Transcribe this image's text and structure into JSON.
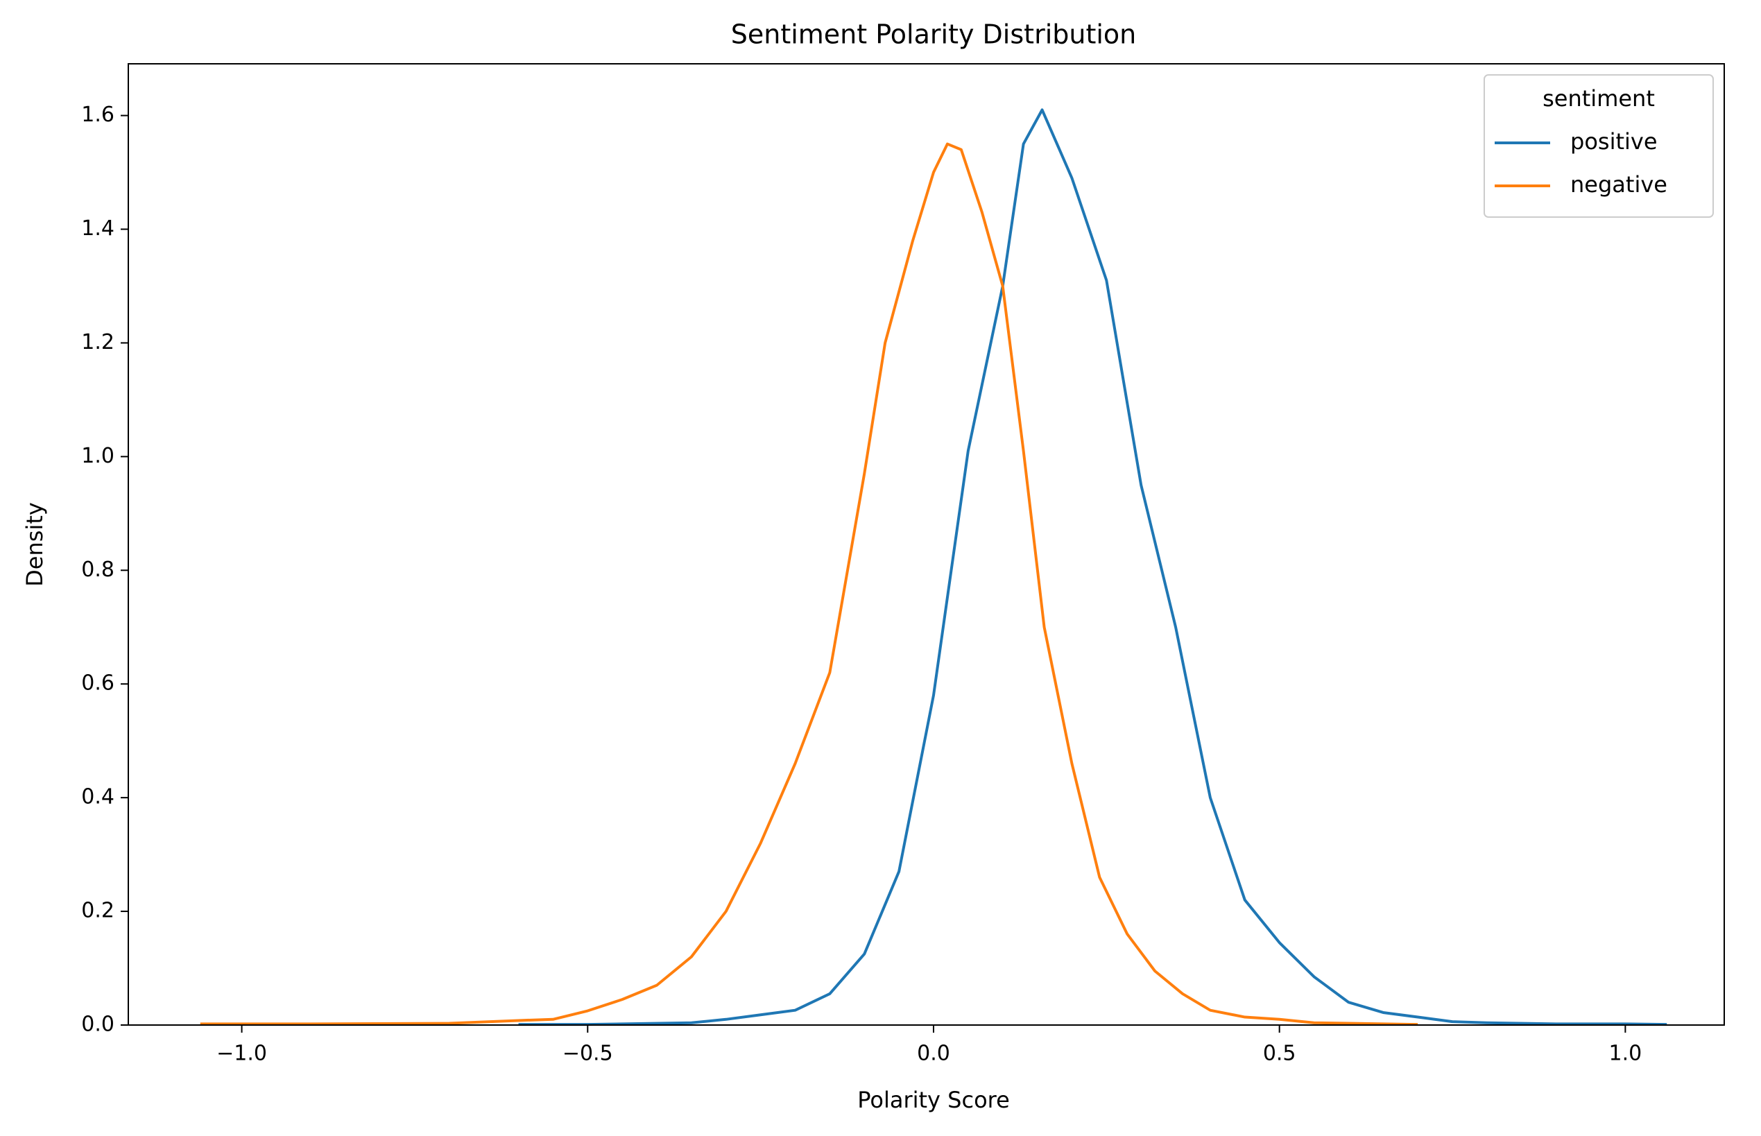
{
  "chart_data": {
    "type": "line",
    "title": "Sentiment Polarity Distribution",
    "x_label": "Polarity Score",
    "y_label": "Density",
    "xlim": [
      -1.164,
      1.143
    ],
    "ylim": [
      0,
      1.691
    ],
    "xticks": [
      {
        "value": -1.0,
        "label": "−1.0"
      },
      {
        "value": -0.5,
        "label": "−0.5"
      },
      {
        "value": 0,
        "label": "0.0"
      },
      0.5,
      {
        "value": 1.0,
        "label": "1.0"
      }
    ],
    "yticks": [
      {
        "value": 0,
        "label": "0.0"
      },
      0.2,
      0.4,
      0.6,
      0.8,
      {
        "value": 1.0,
        "label": "1.0"
      },
      1.2,
      1.4,
      1.6
    ],
    "legend_title": "sentiment",
    "legend_position": "upper-right",
    "series": [
      {
        "name": "positive",
        "color": "#1f77b4",
        "x": [
          -0.6,
          -0.5,
          -0.35,
          -0.3,
          -0.25,
          -0.2,
          -0.15,
          -0.1,
          -0.05,
          0.0,
          0.05,
          0.1,
          0.13,
          0.157,
          0.2,
          0.25,
          0.3,
          0.35,
          0.4,
          0.45,
          0.5,
          0.55,
          0.6,
          0.65,
          0.7,
          0.75,
          0.8,
          0.9,
          1.0,
          1.06
        ],
        "values": [
          0.001,
          0.001,
          0.004,
          0.01,
          0.018,
          0.026,
          0.055,
          0.125,
          0.27,
          0.58,
          1.01,
          1.3,
          1.55,
          1.61,
          1.49,
          1.31,
          0.95,
          0.7,
          0.4,
          0.22,
          0.145,
          0.085,
          0.04,
          0.022,
          0.014,
          0.006,
          0.004,
          0.002,
          0.002,
          0.001
        ]
      },
      {
        "name": "negative",
        "color": "#ff7f0e",
        "x": [
          -1.06,
          -0.9,
          -0.7,
          -0.6,
          -0.55,
          -0.5,
          -0.45,
          -0.4,
          -0.35,
          -0.3,
          -0.25,
          -0.2,
          -0.15,
          -0.1,
          -0.07,
          -0.03,
          0.0,
          0.02,
          0.04,
          0.07,
          0.1,
          0.13,
          0.16,
          0.2,
          0.24,
          0.28,
          0.32,
          0.36,
          0.4,
          0.45,
          0.5,
          0.55,
          0.6,
          0.7
        ],
        "values": [
          0.002,
          0.002,
          0.003,
          0.008,
          0.01,
          0.025,
          0.045,
          0.07,
          0.12,
          0.2,
          0.32,
          0.46,
          0.62,
          0.97,
          1.2,
          1.38,
          1.5,
          1.55,
          1.54,
          1.43,
          1.3,
          1.01,
          0.7,
          0.46,
          0.26,
          0.16,
          0.095,
          0.055,
          0.026,
          0.014,
          0.01,
          0.004,
          0.003,
          0.001
        ]
      }
    ]
  }
}
